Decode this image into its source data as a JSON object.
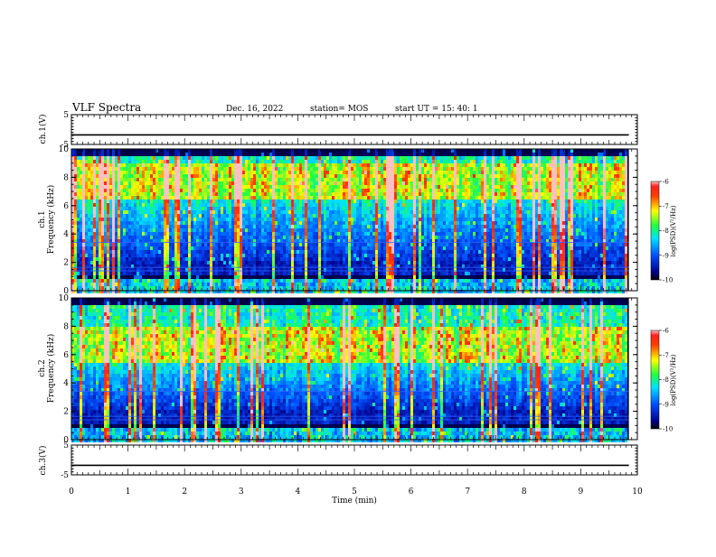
{
  "header": {
    "title": "VLF Spectra",
    "date": "Dec. 16, 2022",
    "station": "station= MOS",
    "start": "start  UT =   15: 40: 1"
  },
  "chart_data": [
    {
      "type": "line",
      "ylabel": "ch.1(V)",
      "ylim": [
        -5,
        5
      ],
      "yticks": [
        "5",
        "-5"
      ],
      "xlim": [
        0,
        10
      ],
      "series": [
        {
          "values": [
            -1.8,
            -1.8
          ]
        }
      ]
    },
    {
      "type": "heatmap",
      "ylabel_channel": "ch.1",
      "ylabel": "Frequency  (kHz)",
      "ylim": [
        0,
        10
      ],
      "yticks": [
        "0",
        "2",
        "4",
        "6",
        "8",
        "10"
      ],
      "xlim": [
        0,
        9.85
      ],
      "colorbar": {
        "label": "log(PSD)(V²/Hz)",
        "range": [
          -10,
          -6
        ],
        "ticks": [
          "-6",
          "-7",
          "-8",
          "-9",
          "-10"
        ]
      },
      "intensity_band_khz": [
        6.5,
        9
      ]
    },
    {
      "type": "heatmap",
      "ylabel_channel": "ch.2",
      "ylabel": "Frequency  (kHz)",
      "ylim": [
        0,
        10
      ],
      "yticks": [
        "0",
        "2",
        "4",
        "6",
        "8",
        "10"
      ],
      "xlim": [
        0,
        9.85
      ],
      "colorbar": {
        "label": "log(PSD)(V²/Hz)",
        "range": [
          -10,
          -6
        ],
        "ticks": [
          "-6",
          "-7",
          "-8",
          "-9",
          "-10"
        ]
      },
      "intensity_band_khz": [
        5.5,
        8
      ]
    },
    {
      "type": "line",
      "ylabel": "ch.3(V)",
      "ylim": [
        -5,
        5
      ],
      "yticks": [
        "5",
        "-5"
      ],
      "xlim": [
        0,
        10
      ],
      "series": [
        {
          "values": [
            -1.8,
            -1.8
          ]
        }
      ]
    }
  ],
  "xaxis": {
    "label": "Time  (min)",
    "ticks": [
      "0",
      "1",
      "2",
      "3",
      "4",
      "5",
      "6",
      "7",
      "8",
      "9",
      "10"
    ]
  }
}
